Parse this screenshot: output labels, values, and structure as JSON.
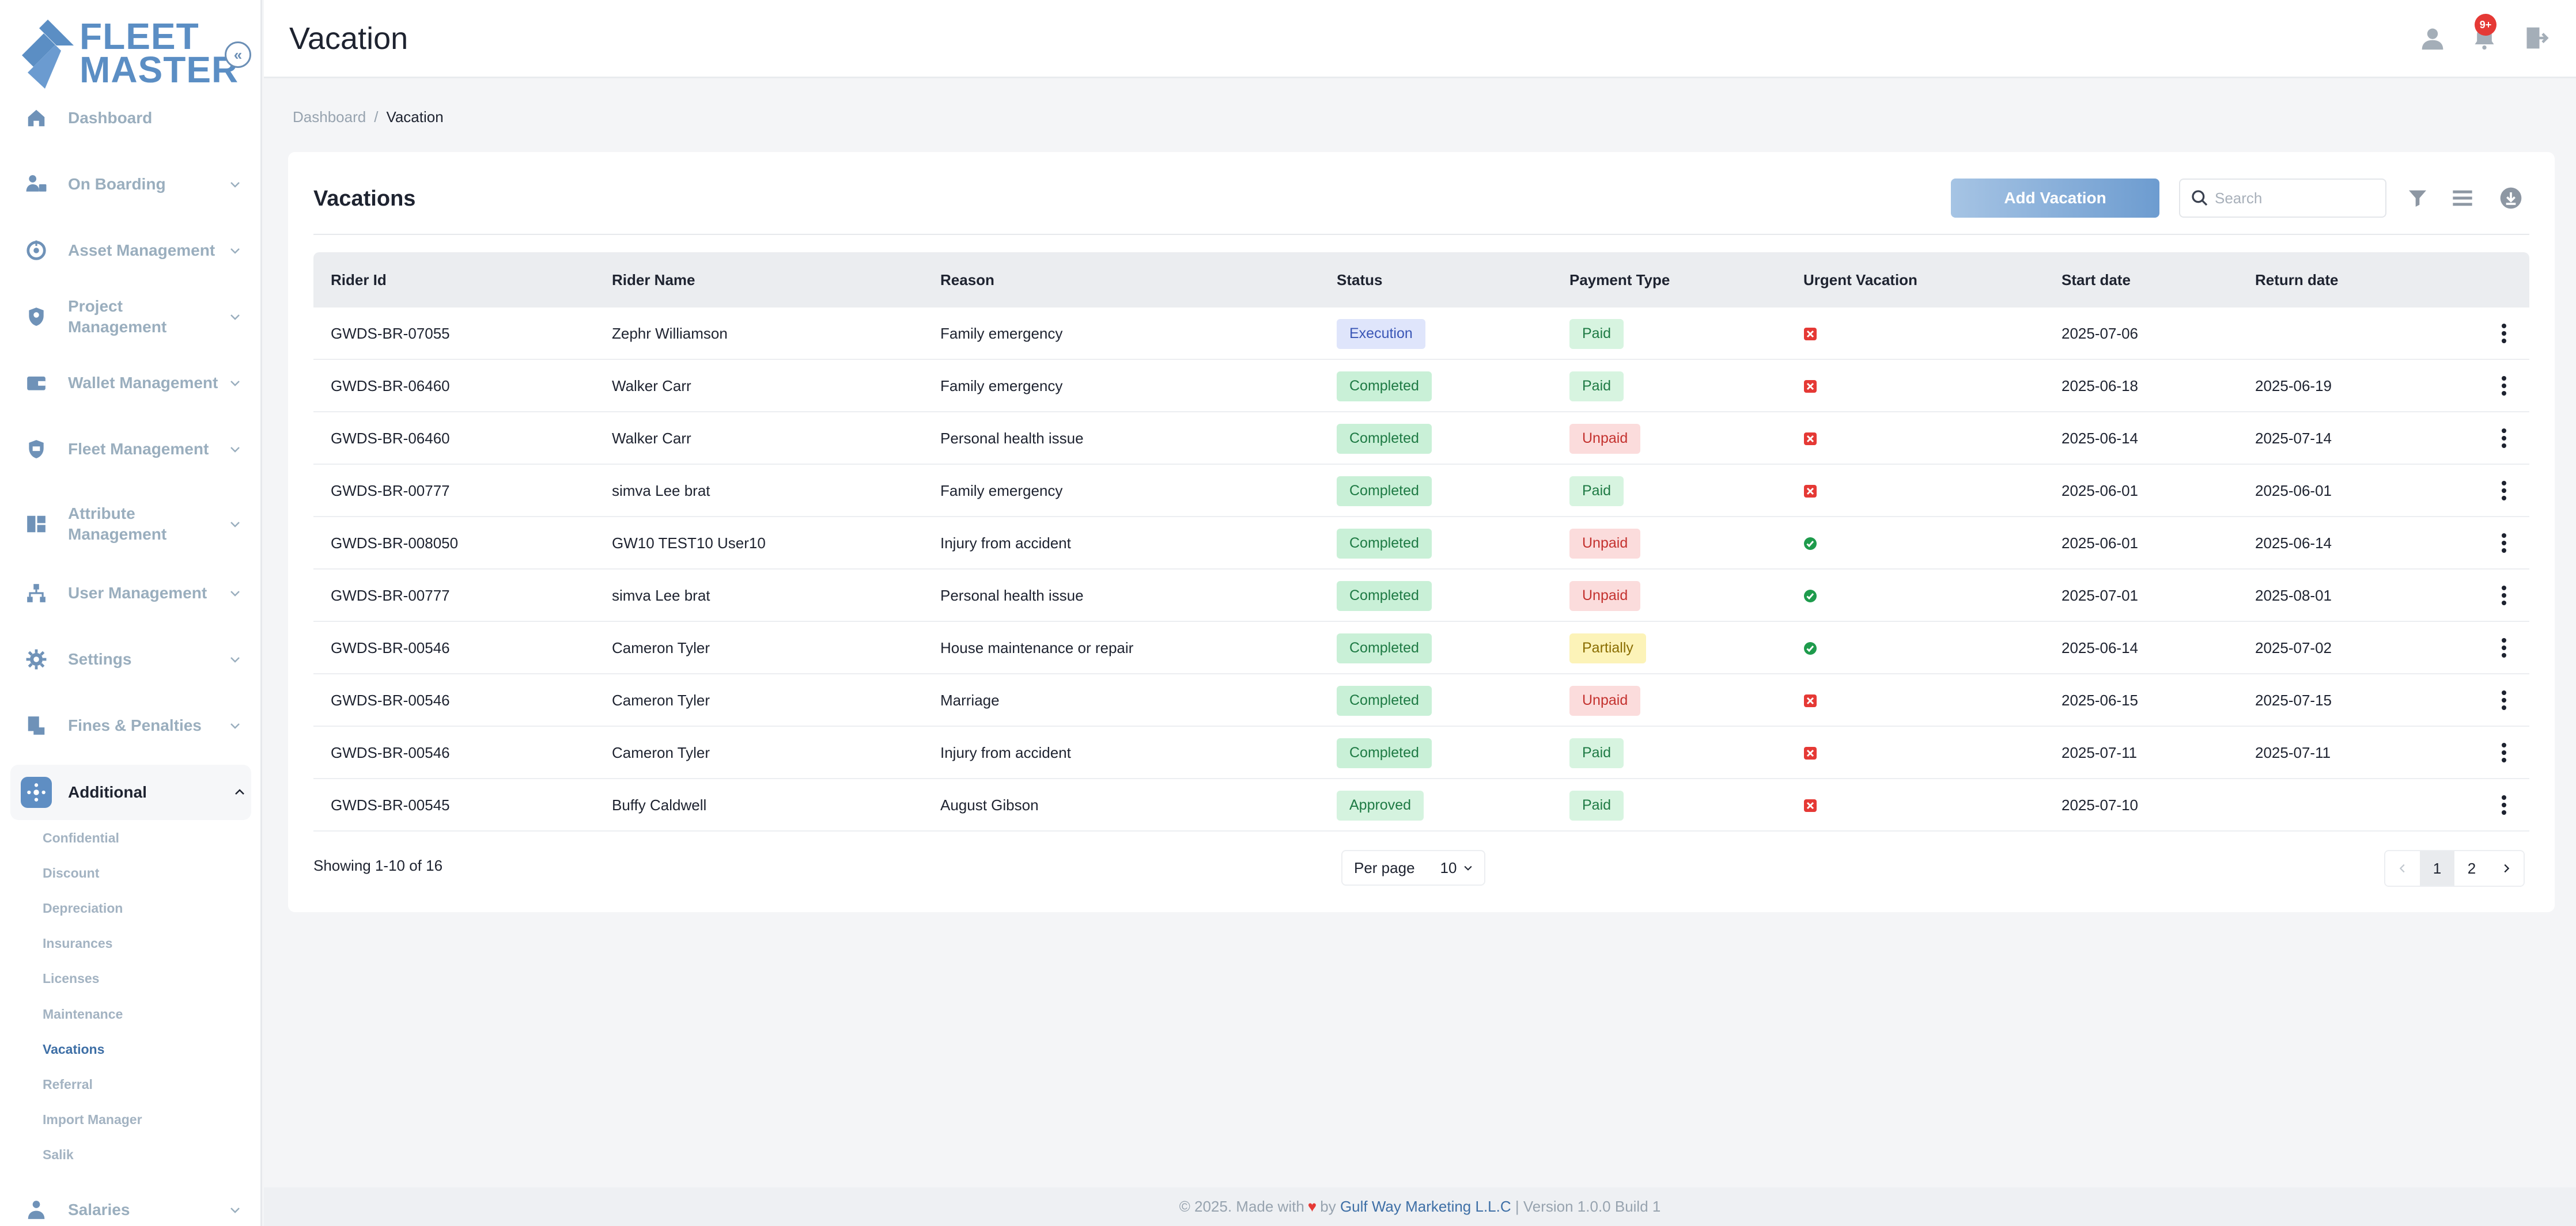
{
  "sidebar": {
    "logo_line1": "FLEET",
    "logo_line2": "MASTER",
    "collapse_icon": "chevrons-left-icon",
    "items": [
      {
        "label": "Dashboard",
        "icon": "home-icon"
      },
      {
        "label": "On Boarding",
        "icon": "onboarding-icon"
      },
      {
        "label": "Asset Management",
        "icon": "asset-icon"
      },
      {
        "label": "Project Management",
        "icon": "project-icon"
      },
      {
        "label": "Wallet Management",
        "icon": "wallet-icon"
      },
      {
        "label": "Fleet Management",
        "icon": "fleet-icon"
      },
      {
        "label": "Attribute Management",
        "icon": "attribute-icon"
      },
      {
        "label": "User Management",
        "icon": "users-icon"
      },
      {
        "label": "Settings",
        "icon": "gear-icon"
      },
      {
        "label": "Fines & Penalties",
        "icon": "fines-icon"
      },
      {
        "label": "Additional",
        "icon": "additional-icon"
      },
      {
        "label": "Salaries",
        "icon": "salaries-icon"
      }
    ],
    "subitems": [
      {
        "label": "Confidential"
      },
      {
        "label": "Discount"
      },
      {
        "label": "Depreciation"
      },
      {
        "label": "Insurances"
      },
      {
        "label": "Licenses"
      },
      {
        "label": "Maintenance"
      },
      {
        "label": "Vacations"
      },
      {
        "label": "Referral"
      },
      {
        "label": "Import Manager"
      },
      {
        "label": "Salik"
      }
    ]
  },
  "header": {
    "title": "Vacation",
    "notification_count": "9+"
  },
  "breadcrumb": {
    "home": "Dashboard",
    "separator": "/",
    "current": "Vacation"
  },
  "card": {
    "title": "Vacations",
    "add_button": "Add Vacation",
    "search_placeholder": "Search"
  },
  "table": {
    "columns": [
      "Rider Id",
      "Rider Name",
      "Reason",
      "Status",
      "Payment Type",
      "Urgent Vacation",
      "Start date",
      "Return date"
    ],
    "rows": [
      {
        "rider_id": "GWDS-BR-07055",
        "name": "Zephr Williamson",
        "reason": "Family emergency",
        "status": "Execution",
        "payment": "Paid",
        "urgent": false,
        "start": "2025-07-06",
        "return": ""
      },
      {
        "rider_id": "GWDS-BR-06460",
        "name": "Walker Carr",
        "reason": "Family emergency",
        "status": "Completed",
        "payment": "Paid",
        "urgent": false,
        "start": "2025-06-18",
        "return": "2025-06-19"
      },
      {
        "rider_id": "GWDS-BR-06460",
        "name": "Walker Carr",
        "reason": "Personal health issue",
        "status": "Completed",
        "payment": "Unpaid",
        "urgent": false,
        "start": "2025-06-14",
        "return": "2025-07-14"
      },
      {
        "rider_id": "GWDS-BR-00777",
        "name": "simva Lee brat",
        "reason": "Family emergency",
        "status": "Completed",
        "payment": "Paid",
        "urgent": false,
        "start": "2025-06-01",
        "return": "2025-06-01"
      },
      {
        "rider_id": "GWDS-BR-008050",
        "name": "GW10 TEST10 User10",
        "reason": "Injury from accident",
        "status": "Completed",
        "payment": "Unpaid",
        "urgent": true,
        "start": "2025-06-01",
        "return": "2025-06-14"
      },
      {
        "rider_id": "GWDS-BR-00777",
        "name": "simva Lee brat",
        "reason": "Personal health issue",
        "status": "Completed",
        "payment": "Unpaid",
        "urgent": true,
        "start": "2025-07-01",
        "return": "2025-08-01"
      },
      {
        "rider_id": "GWDS-BR-00546",
        "name": "Cameron Tyler",
        "reason": "House maintenance or repair",
        "status": "Completed",
        "payment": "Partially",
        "urgent": true,
        "start": "2025-06-14",
        "return": "2025-07-02"
      },
      {
        "rider_id": "GWDS-BR-00546",
        "name": "Cameron Tyler",
        "reason": "Marriage",
        "status": "Completed",
        "payment": "Unpaid",
        "urgent": false,
        "start": "2025-06-15",
        "return": "2025-07-15"
      },
      {
        "rider_id": "GWDS-BR-00546",
        "name": "Cameron Tyler",
        "reason": "Injury from accident",
        "status": "Completed",
        "payment": "Paid",
        "urgent": false,
        "start": "2025-07-11",
        "return": "2025-07-11"
      },
      {
        "rider_id": "GWDS-BR-00545",
        "name": "Buffy Caldwell",
        "reason": "August Gibson",
        "status": "Approved",
        "payment": "Paid",
        "urgent": false,
        "start": "2025-07-10",
        "return": ""
      }
    ]
  },
  "pagination": {
    "showing": "Showing 1-10 of 16",
    "per_page_label": "Per page",
    "per_page_value": "10",
    "pages": [
      "1",
      "2"
    ],
    "current_page": "1"
  },
  "footer": {
    "prefix": "© 2025. Made with",
    "by": "by",
    "company": "Gulf Way Marketing L.L.C",
    "suffix": "| Version 1.0.0 Build 1"
  },
  "colors": {
    "accent": "#5f8ec3",
    "brand": "#5b8ec4",
    "danger": "#e53935",
    "success": "#1e9b4c"
  }
}
